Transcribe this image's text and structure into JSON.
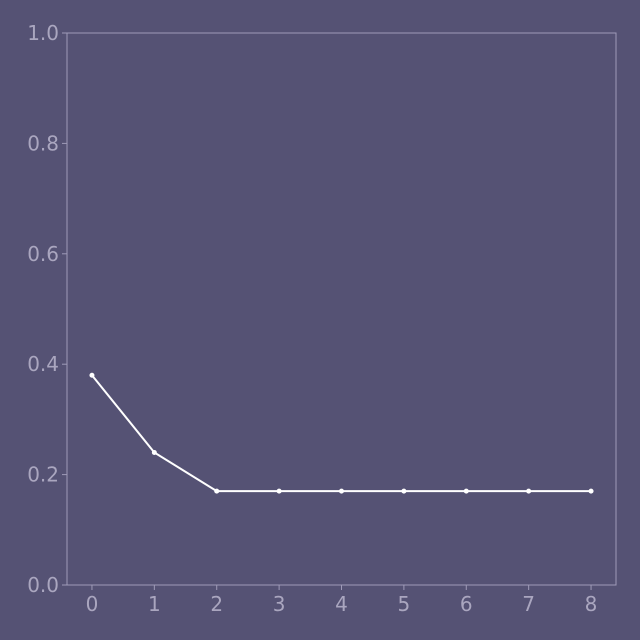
{
  "chart_data": {
    "type": "line",
    "x": [
      0,
      1,
      2,
      3,
      4,
      5,
      6,
      7,
      8
    ],
    "series": [
      {
        "values": [
          0.38,
          0.24,
          0.17,
          0.17,
          0.17,
          0.17,
          0.17,
          0.17,
          0.17
        ]
      }
    ],
    "xticks": [
      "0",
      "1",
      "2",
      "3",
      "4",
      "5",
      "6",
      "7",
      "8"
    ],
    "yticks": [
      "0.0",
      "0.2",
      "0.4",
      "0.6",
      "0.8",
      "1.0"
    ],
    "xlim": [
      -0.4,
      8.4
    ],
    "ylim": [
      0,
      1
    ],
    "grid": false,
    "colors": {
      "background": "#555274",
      "line": "#ffffff",
      "axis": "#9f9bb8",
      "text": "#aaa6bf"
    }
  }
}
